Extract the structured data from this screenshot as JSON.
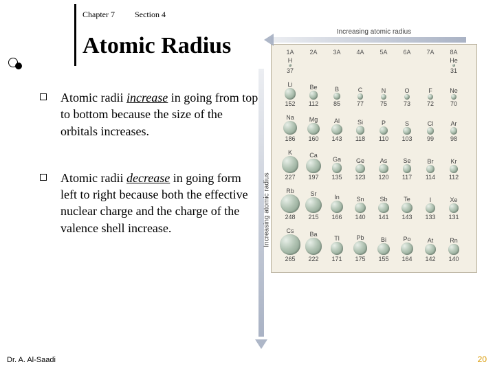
{
  "header": {
    "chapter": "Chapter 7",
    "section": "Section 4"
  },
  "title": "Atomic Radius",
  "bullets": [
    {
      "pre": "Atomic radii ",
      "emph": "increase",
      "post": " in going from top to bottom because the size of the orbitals increases."
    },
    {
      "pre": "Atomic radii ",
      "emph": "decrease",
      "post": " in going form left to right because both the effective nuclear charge and the charge of the valence shell increase."
    }
  ],
  "footer": {
    "author": "Dr. A. Al-Saadi",
    "slide_number": "20"
  },
  "figure": {
    "top_label": "Increasing atomic radius",
    "left_label": "Increasing atomic radius",
    "colors": {
      "frame_border": "#b8b09c",
      "frame_bg": "#f3efe4",
      "arrow_fill": "#a0aabe",
      "ball_light": "#e8efe8",
      "ball_mid": "#b2c4b4",
      "ball_dark": "#7d9582"
    },
    "col_headers": [
      "1A",
      "2A",
      "3A",
      "4A",
      "5A",
      "6A",
      "7A",
      "8A"
    ],
    "pixel_scale": 0.11,
    "rows": [
      {
        "special": true,
        "cells": [
          {
            "sym": "H",
            "val": 37
          },
          null,
          null,
          null,
          null,
          null,
          null,
          {
            "sym": "He",
            "val": 31
          }
        ]
      },
      {
        "cells": [
          {
            "sym": "Li",
            "val": 152
          },
          {
            "sym": "Be",
            "val": 112
          },
          {
            "sym": "B",
            "val": 85
          },
          {
            "sym": "C",
            "val": 77
          },
          {
            "sym": "N",
            "val": 75
          },
          {
            "sym": "O",
            "val": 73
          },
          {
            "sym": "F",
            "val": 72
          },
          {
            "sym": "Ne",
            "val": 70
          }
        ]
      },
      {
        "cells": [
          {
            "sym": "Na",
            "val": 186
          },
          {
            "sym": "Mg",
            "val": 160
          },
          {
            "sym": "Al",
            "val": 143
          },
          {
            "sym": "Si",
            "val": 118
          },
          {
            "sym": "P",
            "val": 110
          },
          {
            "sym": "S",
            "val": 103
          },
          {
            "sym": "Cl",
            "val": 99
          },
          {
            "sym": "Ar",
            "val": 98
          }
        ]
      },
      {
        "cells": [
          {
            "sym": "K",
            "val": 227
          },
          {
            "sym": "Ca",
            "val": 197
          },
          {
            "sym": "Ga",
            "val": 135
          },
          {
            "sym": "Ge",
            "val": 123
          },
          {
            "sym": "As",
            "val": 120
          },
          {
            "sym": "Se",
            "val": 117
          },
          {
            "sym": "Br",
            "val": 114
          },
          {
            "sym": "Kr",
            "val": 112
          }
        ]
      },
      {
        "cells": [
          {
            "sym": "Rb",
            "val": 248
          },
          {
            "sym": "Sr",
            "val": 215
          },
          {
            "sym": "In",
            "val": 166
          },
          {
            "sym": "Sn",
            "val": 140
          },
          {
            "sym": "Sb",
            "val": 141
          },
          {
            "sym": "Te",
            "val": 143
          },
          {
            "sym": "I",
            "val": 133
          },
          {
            "sym": "Xe",
            "val": 131
          }
        ]
      },
      {
        "cells": [
          {
            "sym": "Cs",
            "val": 265
          },
          {
            "sym": "Ba",
            "val": 222
          },
          {
            "sym": "Tl",
            "val": 171
          },
          {
            "sym": "Pb",
            "val": 175
          },
          {
            "sym": "Bi",
            "val": 155
          },
          {
            "sym": "Po",
            "val": 164
          },
          {
            "sym": "At",
            "val": 142
          },
          {
            "sym": "Rn",
            "val": 140
          }
        ]
      }
    ]
  }
}
